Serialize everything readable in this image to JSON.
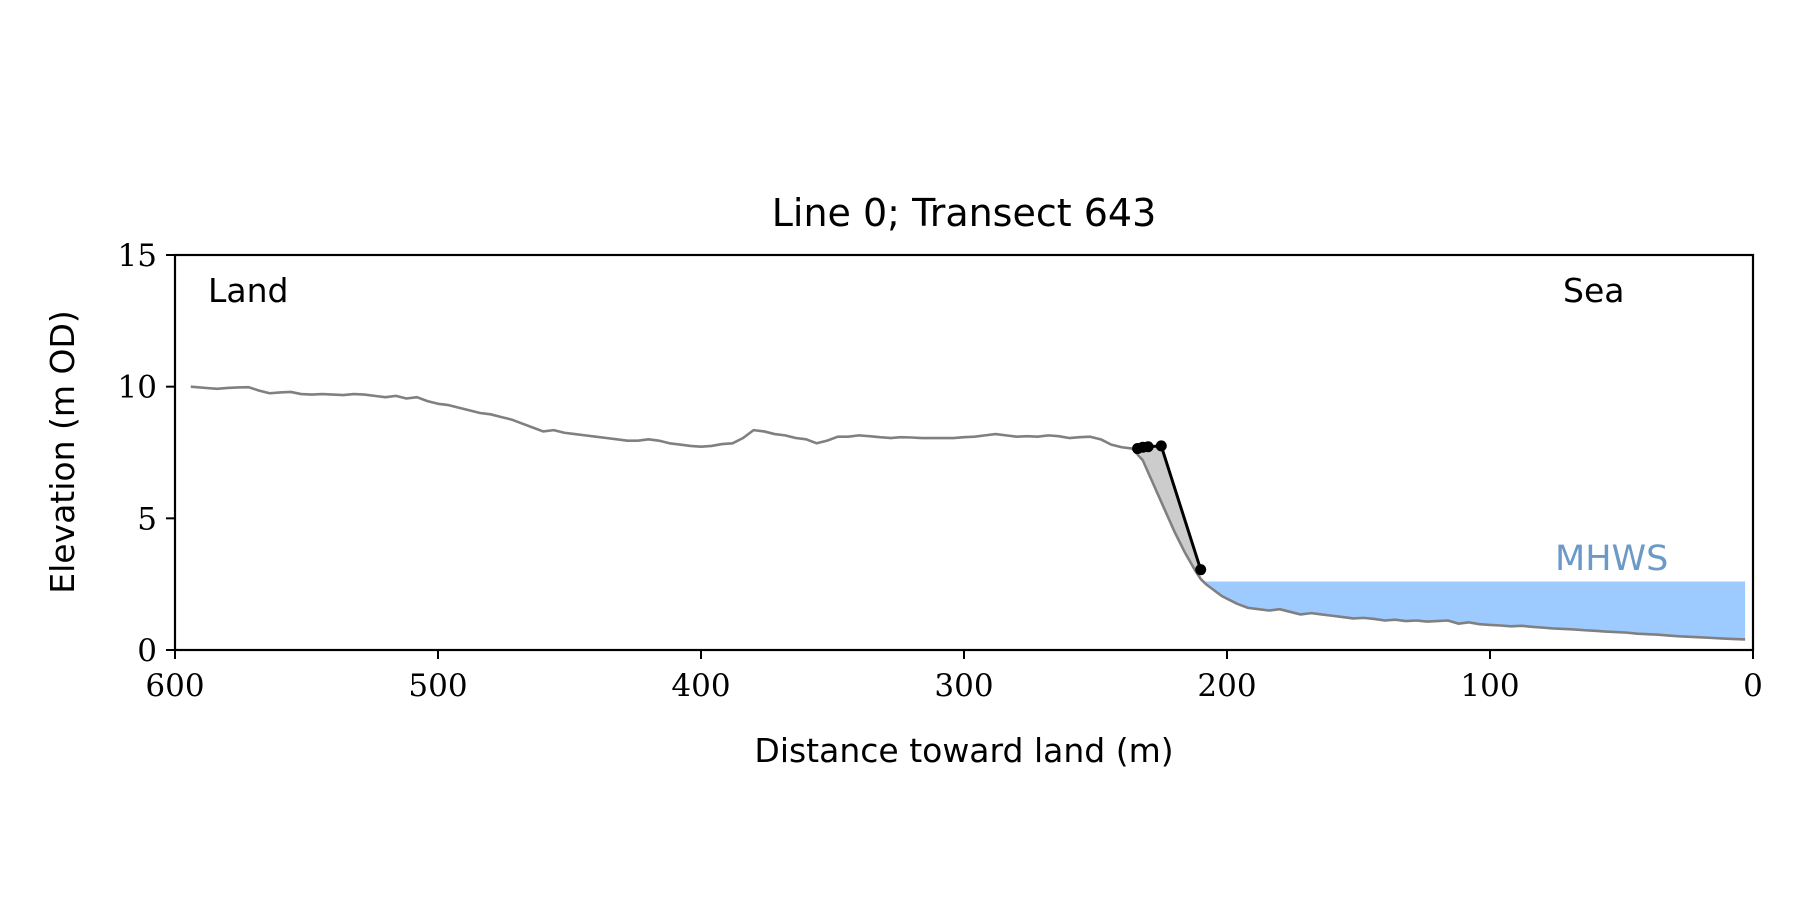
{
  "chart_data": {
    "type": "line",
    "title": "Line 0; Transect 643",
    "xlabel": "Distance toward land (m)",
    "ylabel": "Elevation (m OD)",
    "xlim": [
      600,
      0
    ],
    "ylim": [
      0,
      15
    ],
    "x_ticks": [
      600,
      500,
      400,
      300,
      200,
      100,
      0
    ],
    "y_ticks": [
      0,
      5,
      10,
      15
    ],
    "grid": false,
    "annotations": {
      "land": "Land",
      "sea": "Sea",
      "mhws": "MHWS"
    },
    "mhws_level": 2.6,
    "mhws_x_range": [
      210,
      3
    ],
    "profile": {
      "color": "#808080",
      "x": [
        594,
        588,
        584,
        580,
        576,
        572,
        568,
        564,
        560,
        556,
        552,
        548,
        544,
        540,
        536,
        532,
        528,
        524,
        520,
        516,
        512,
        508,
        504,
        500,
        496,
        492,
        488,
        484,
        480,
        476,
        472,
        468,
        464,
        460,
        456,
        452,
        448,
        444,
        440,
        436,
        432,
        428,
        424,
        420,
        416,
        412,
        408,
        404,
        400,
        396,
        392,
        388,
        384,
        380,
        376,
        372,
        368,
        364,
        360,
        356,
        352,
        348,
        344,
        340,
        336,
        332,
        328,
        324,
        320,
        316,
        312,
        308,
        304,
        300,
        296,
        292,
        288,
        284,
        280,
        276,
        272,
        268,
        264,
        260,
        256,
        252,
        248,
        244,
        240,
        236,
        232,
        228,
        224,
        220,
        216,
        212,
        210,
        208,
        206,
        204,
        202,
        200,
        196,
        192,
        188,
        184,
        180,
        176,
        172,
        168,
        164,
        160,
        156,
        152,
        148,
        144,
        140,
        136,
        132,
        128,
        124,
        120,
        116,
        112,
        108,
        104,
        100,
        96,
        92,
        88,
        84,
        80,
        76,
        72,
        68,
        64,
        60,
        56,
        52,
        48,
        44,
        40,
        36,
        32,
        28,
        24,
        20,
        16,
        12,
        8,
        3
      ],
      "y": [
        10.0,
        9.95,
        9.92,
        9.95,
        9.97,
        9.98,
        9.85,
        9.75,
        9.78,
        9.8,
        9.72,
        9.7,
        9.72,
        9.7,
        9.68,
        9.72,
        9.7,
        9.65,
        9.6,
        9.65,
        9.55,
        9.6,
        9.45,
        9.35,
        9.3,
        9.2,
        9.1,
        9.0,
        8.95,
        8.85,
        8.75,
        8.6,
        8.45,
        8.3,
        8.35,
        8.25,
        8.2,
        8.15,
        8.1,
        8.05,
        8.0,
        7.95,
        7.95,
        8.0,
        7.95,
        7.85,
        7.8,
        7.75,
        7.72,
        7.75,
        7.82,
        7.85,
        8.05,
        8.35,
        8.3,
        8.2,
        8.15,
        8.05,
        8.0,
        7.85,
        7.95,
        8.1,
        8.1,
        8.15,
        8.12,
        8.08,
        8.05,
        8.08,
        8.07,
        8.05,
        8.05,
        8.05,
        8.05,
        8.08,
        8.1,
        8.15,
        8.2,
        8.15,
        8.1,
        8.12,
        8.1,
        8.15,
        8.12,
        8.05,
        8.08,
        8.1,
        8.0,
        7.8,
        7.7,
        7.65,
        7.2,
        6.3,
        5.4,
        4.5,
        3.7,
        3.0,
        2.7,
        2.5,
        2.35,
        2.2,
        2.05,
        1.95,
        1.75,
        1.6,
        1.55,
        1.5,
        1.55,
        1.45,
        1.35,
        1.4,
        1.35,
        1.3,
        1.25,
        1.2,
        1.22,
        1.18,
        1.12,
        1.15,
        1.1,
        1.12,
        1.08,
        1.1,
        1.12,
        1.0,
        1.05,
        0.98,
        0.95,
        0.93,
        0.9,
        0.92,
        0.88,
        0.85,
        0.82,
        0.8,
        0.78,
        0.75,
        0.73,
        0.7,
        0.68,
        0.66,
        0.62,
        0.6,
        0.58,
        0.55,
        0.52,
        0.5,
        0.48,
        0.46,
        0.44,
        0.42,
        0.4
      ]
    },
    "cliff_line": {
      "color": "#000000",
      "x": [
        234,
        232,
        230,
        225,
        210
      ],
      "y": [
        7.65,
        7.7,
        7.72,
        7.75,
        3.05
      ]
    },
    "cliff_shading": {
      "color": "#cccccc"
    },
    "mhws_color": "#9ecbff",
    "mhws_label_color": "#6b9ac8"
  }
}
